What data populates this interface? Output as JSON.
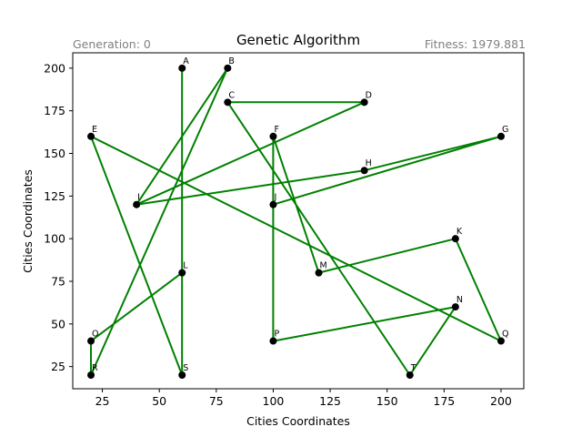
{
  "chart_data": {
    "type": "scatter",
    "title": "Genetic Algorithm",
    "generation_text": "Generation: 0",
    "fitness_text": "Fitness: 1979.881",
    "xlabel": "Cities Coordinates",
    "ylabel": "Cities Coordinates",
    "xlim": [
      12,
      210
    ],
    "ylim": [
      12,
      209
    ],
    "xticks": [
      25,
      50,
      75,
      100,
      125,
      150,
      175,
      200
    ],
    "yticks": [
      25,
      50,
      75,
      100,
      125,
      150,
      175,
      200
    ],
    "grid": false,
    "route_color": "#008000",
    "point_color": "#000000",
    "cities": [
      {
        "name": "A",
        "x": 60,
        "y": 200
      },
      {
        "name": "B",
        "x": 80,
        "y": 200
      },
      {
        "name": "C",
        "x": 80,
        "y": 180
      },
      {
        "name": "D",
        "x": 140,
        "y": 180
      },
      {
        "name": "E",
        "x": 20,
        "y": 160
      },
      {
        "name": "F",
        "x": 100,
        "y": 160
      },
      {
        "name": "G",
        "x": 200,
        "y": 160
      },
      {
        "name": "H",
        "x": 140,
        "y": 140
      },
      {
        "name": "I",
        "x": 40,
        "y": 120
      },
      {
        "name": "J",
        "x": 100,
        "y": 120
      },
      {
        "name": "K",
        "x": 180,
        "y": 100
      },
      {
        "name": "L",
        "x": 60,
        "y": 80
      },
      {
        "name": "M",
        "x": 120,
        "y": 80
      },
      {
        "name": "N",
        "x": 180,
        "y": 60
      },
      {
        "name": "O",
        "x": 20,
        "y": 40
      },
      {
        "name": "P",
        "x": 100,
        "y": 40
      },
      {
        "name": "Q",
        "x": 200,
        "y": 40
      },
      {
        "name": "R",
        "x": 20,
        "y": 20
      },
      {
        "name": "S",
        "x": 60,
        "y": 20
      },
      {
        "name": "T",
        "x": 160,
        "y": 20
      }
    ],
    "route": [
      "A",
      "S",
      "E",
      "Q",
      "K",
      "M",
      "F",
      "J",
      "P",
      "N",
      "T",
      "C",
      "D",
      "I",
      "B",
      "R",
      "O",
      "L",
      "A"
    ],
    "route_extra": [
      "I",
      "H",
      "G",
      "J"
    ]
  }
}
